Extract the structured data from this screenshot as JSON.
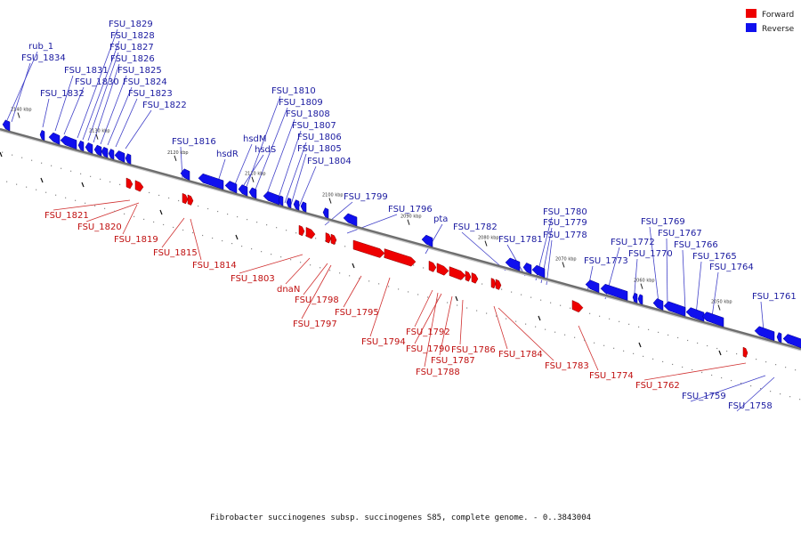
{
  "legend": {
    "forward": {
      "label": "Forward",
      "color": "#ee0000"
    },
    "reverse": {
      "label": "Reverse",
      "color": "#1010ee"
    }
  },
  "caption": "Fibrobacter succinogenes subsp. succinogenes S85, complete genome. - 0..3843004",
  "ticks": [
    "2140 kbp",
    "2130 kbp",
    "2120 kbp",
    "2110 kbp",
    "2100 kbp",
    "2090 kbp",
    "2080 kbp",
    "2070 kbp",
    "2060 kbp",
    "2050 kbp"
  ],
  "reverse_genes": [
    "rub_1",
    "FSU_1834",
    "FSU_1832",
    "FSU_1831",
    "FSU_1830",
    "FSU_1829",
    "FSU_1828",
    "FSU_1827",
    "FSU_1826",
    "FSU_1825",
    "FSU_1824",
    "FSU_1823",
    "FSU_1822",
    "FSU_1816",
    "hsdR",
    "hsdM",
    "hsdS",
    "FSU_1810",
    "FSU_1809",
    "FSU_1808",
    "FSU_1807",
    "FSU_1806",
    "FSU_1805",
    "FSU_1804",
    "FSU_1799",
    "FSU_1796",
    "pta",
    "FSU_1782",
    "FSU_1781",
    "FSU_1780",
    "FSU_1779",
    "FSU_1778",
    "FSU_1773",
    "FSU_1772",
    "FSU_1770",
    "FSU_1769",
    "FSU_1767",
    "FSU_1766",
    "FSU_1765",
    "FSU_1764",
    "FSU_1761",
    "FSU_1759",
    "FSU_1758"
  ],
  "forward_genes": [
    "FSU_1821",
    "FSU_1820",
    "FSU_1819",
    "FSU_1815",
    "FSU_1814",
    "FSU_1803",
    "dnaN",
    "FSU_1798",
    "FSU_1797",
    "FSU_1795",
    "FSU_1794",
    "FSU_1792",
    "FSU_1790",
    "FSU_1787",
    "FSU_1788",
    "FSU_1786",
    "FSU_1784",
    "FSU_1783",
    "FSU_1774",
    "FSU_1762"
  ]
}
